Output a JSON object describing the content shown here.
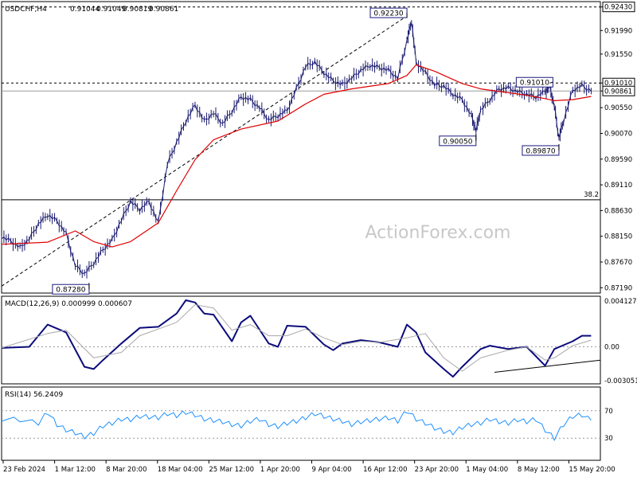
{
  "chart_data": [
    {
      "panel": "price",
      "type": "candlestick",
      "header": {
        "symbol": "USDCHF,H4",
        "open": "0.91044",
        "high": "0.91049",
        "low": "0.90819",
        "close": "0.90861"
      },
      "y_ticks": [
        "0.92430",
        "0.91990",
        "0.91550",
        "0.91010",
        "0.90861",
        "0.90550",
        "0.90070",
        "0.89590",
        "0.89110",
        "0.88630",
        "0.88150",
        "0.87670",
        "0.87190"
      ],
      "ylim": [
        0.8712,
        0.9247
      ],
      "current_price_label": "0.90861",
      "h_levels": [
        {
          "label": "0.92430",
          "value": 0.9243,
          "style": "dashed"
        },
        {
          "label": "0.91010",
          "value": 0.9101,
          "style": "dashed"
        },
        {
          "label": "0.90861",
          "value": 0.90861,
          "style": "solid-gray"
        },
        {
          "label": "38.2",
          "value": 0.8883,
          "style": "solid"
        }
      ],
      "annotations": [
        {
          "text": "0.92230",
          "x": 88,
          "value": 0.9223
        },
        {
          "text": "0.91010",
          "x": 119,
          "value": 0.9101
        },
        {
          "text": "0.90050",
          "x": 103,
          "value": 0.9005
        },
        {
          "text": "0.89870",
          "x": 121,
          "value": 0.8987
        },
        {
          "text": "0.87280",
          "x": 19,
          "value": 0.8728
        }
      ],
      "trendline": {
        "x": [
          0,
          88
        ],
        "y": [
          0.8722,
          0.9226
        ]
      },
      "price_path": {
        "x": [
          0,
          2,
          4,
          6,
          8,
          10,
          12,
          14,
          16,
          18,
          20,
          22,
          24,
          26,
          28,
          30,
          32,
          34,
          36,
          38,
          40,
          42,
          44,
          46,
          48,
          50,
          52,
          54,
          56,
          58,
          60,
          62,
          64,
          66,
          68,
          70,
          72,
          74,
          76,
          78,
          80,
          82,
          84,
          86,
          88,
          89,
          90,
          92,
          94,
          96,
          98,
          100,
          102,
          103,
          104,
          106,
          108,
          110,
          112,
          114,
          116,
          118,
          119,
          120,
          121,
          122,
          124,
          126,
          128
        ],
        "y": [
          0.8814,
          0.8806,
          0.8794,
          0.881,
          0.8838,
          0.8855,
          0.8844,
          0.882,
          0.876,
          0.8745,
          0.8765,
          0.879,
          0.8808,
          0.8845,
          0.888,
          0.8865,
          0.888,
          0.884,
          0.895,
          0.899,
          0.903,
          0.906,
          0.903,
          0.9045,
          0.9025,
          0.9048,
          0.9075,
          0.907,
          0.9055,
          0.9032,
          0.904,
          0.905,
          0.909,
          0.9132,
          0.914,
          0.912,
          0.9105,
          0.9098,
          0.911,
          0.9125,
          0.9134,
          0.913,
          0.9125,
          0.911,
          0.918,
          0.9216,
          0.914,
          0.912,
          0.9098,
          0.9095,
          0.908,
          0.907,
          0.904,
          0.9012,
          0.905,
          0.907,
          0.909,
          0.9092,
          0.9085,
          0.908,
          0.9075,
          0.9085,
          0.9095,
          0.9058,
          0.8998,
          0.903,
          0.9088,
          0.9096,
          0.9086
        ]
      },
      "ma_path": {
        "x": [
          0,
          10,
          16,
          20,
          24,
          28,
          34,
          38,
          42,
          46,
          52,
          60,
          66,
          70,
          76,
          84,
          88,
          90,
          94,
          100,
          104,
          110,
          114,
          118,
          120,
          124,
          128
        ],
        "y": [
          0.88,
          0.8804,
          0.8825,
          0.8805,
          0.8795,
          0.8805,
          0.884,
          0.89,
          0.8958,
          0.8995,
          0.9015,
          0.903,
          0.9062,
          0.908,
          0.909,
          0.91,
          0.9115,
          0.9135,
          0.9123,
          0.91,
          0.909,
          0.9083,
          0.9078,
          0.9072,
          0.9068,
          0.907,
          0.9076
        ]
      }
    },
    {
      "panel": "macd",
      "type": "line",
      "title": "MACD(12,26,9) 0.000999 0.000607",
      "y_ticks": [
        "0.004127",
        "0.00",
        "-0.003051"
      ],
      "ylim": [
        -0.003051,
        0.004127
      ],
      "series": [
        {
          "role": "macd-main",
          "color": "#0c0c7c",
          "x": [
            0,
            6,
            10,
            14,
            18,
            20,
            22,
            26,
            30,
            34,
            38,
            40,
            42,
            44,
            46,
            50,
            52,
            54,
            58,
            60,
            62,
            66,
            70,
            72,
            74,
            78,
            82,
            86,
            88,
            90,
            92,
            96,
            98,
            100,
            102,
            104,
            106,
            110,
            114,
            118,
            120,
            124,
            126,
            128
          ],
          "y": [
            -0.0001,
            0.0,
            0.002,
            0.0013,
            -0.0018,
            -0.002,
            -0.0012,
            0.0003,
            0.0017,
            0.0018,
            0.003,
            0.0042,
            0.004,
            0.003,
            0.0029,
            0.0005,
            0.0022,
            0.0028,
            0.0003,
            0.0,
            0.0019,
            0.0018,
            0.0002,
            -0.0003,
            0.0003,
            0.0006,
            0.0004,
            0.0,
            0.002,
            0.0013,
            -0.0005,
            -0.002,
            -0.0027,
            -0.0018,
            -0.001,
            -0.0002,
            0.0001,
            -0.0002,
            0.0,
            -0.0017,
            -0.0002,
            0.0005,
            0.001,
            0.001
          ]
        },
        {
          "role": "macd-signal",
          "color": "#a8a8a8",
          "x": [
            0,
            10,
            14,
            20,
            26,
            30,
            38,
            42,
            46,
            50,
            54,
            58,
            62,
            66,
            70,
            74,
            78,
            82,
            88,
            92,
            96,
            100,
            104,
            110,
            114,
            118,
            120,
            124,
            128
          ],
          "y": [
            -0.0001,
            0.0012,
            0.0015,
            -0.001,
            -0.0005,
            0.001,
            0.0022,
            0.0038,
            0.0035,
            0.0015,
            0.002,
            0.001,
            0.001,
            0.0016,
            0.0008,
            0.0002,
            0.0005,
            0.0004,
            0.0008,
            0.0012,
            -0.001,
            -0.0022,
            -0.001,
            -0.0003,
            0.0,
            -0.0012,
            -0.001,
            0.0001,
            0.0006
          ]
        }
      ],
      "trendline": {
        "x": [
          107,
          130
        ],
        "y": [
          -0.0023,
          -0.0012
        ]
      }
    },
    {
      "panel": "rsi",
      "type": "line",
      "title": "RSI(14) 56.2409",
      "y_ticks": [
        "70",
        "30"
      ],
      "levels": [
        70,
        30
      ],
      "ylim": [
        0,
        100
      ],
      "series": [
        {
          "role": "rsi",
          "color": "#1e90ff",
          "x": [
            0,
            4,
            8,
            10,
            12,
            14,
            16,
            18,
            20,
            22,
            24,
            26,
            28,
            30,
            32,
            34,
            36,
            38,
            40,
            42,
            44,
            46,
            48,
            50,
            52,
            54,
            56,
            58,
            60,
            62,
            64,
            66,
            68,
            70,
            72,
            74,
            76,
            78,
            80,
            82,
            84,
            86,
            88,
            90,
            92,
            94,
            96,
            98,
            100,
            102,
            104,
            106,
            108,
            110,
            112,
            114,
            116,
            118,
            120,
            122,
            124,
            126,
            128
          ],
          "y": [
            58,
            57,
            52,
            68,
            50,
            42,
            38,
            32,
            37,
            48,
            52,
            58,
            57,
            62,
            61,
            60,
            66,
            63,
            68,
            64,
            58,
            56,
            54,
            50,
            48,
            55,
            58,
            50,
            47,
            52,
            55,
            60,
            66,
            62,
            58,
            55,
            50,
            54,
            56,
            58,
            60,
            55,
            70,
            58,
            52,
            45,
            40,
            38,
            46,
            50,
            52,
            58,
            54,
            52,
            57,
            54,
            58,
            42,
            30,
            50,
            62,
            64,
            56
          ]
        }
      ]
    }
  ],
  "x_ticks": [
    "23 Feb 2024",
    "1 Mar 12:00",
    "8 Mar 20:00",
    "18 Mar 04:00",
    "25 Mar 12:00",
    "1 Apr 20:00",
    "9 Apr 04:00",
    "16 Apr 12:00",
    "23 Apr 20:00",
    "1 May 04:00",
    "8 May 12:00",
    "15 May 20:00"
  ],
  "watermark": "ActionForex.com",
  "colors": {
    "price": "#1a1a70",
    "ma": "#e00000",
    "grid": "#000000",
    "macd": "#0c0c7c",
    "signal": "#a8a8a8",
    "rsi": "#1e90ff",
    "watermark": "#c8c8c8"
  }
}
